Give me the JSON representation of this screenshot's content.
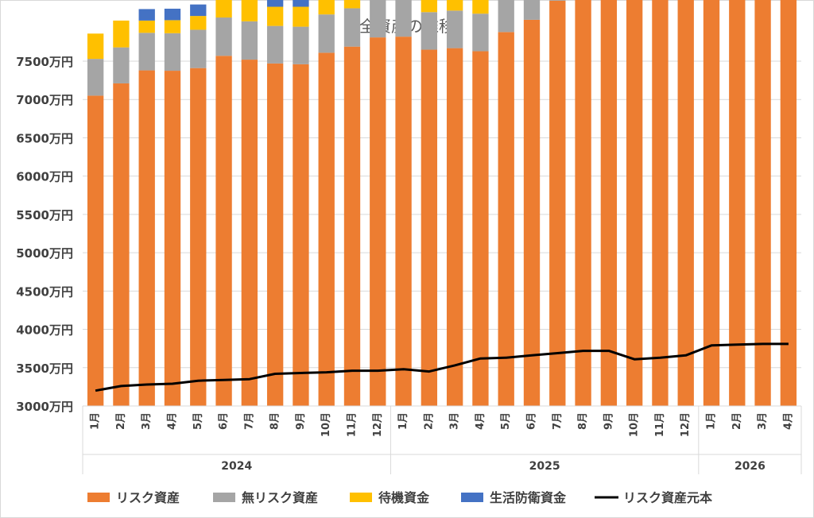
{
  "chart_data": {
    "type": "bar",
    "title": "全資産の推移",
    "xlabel": "",
    "ylabel": "",
    "ylim": [
      3000,
      7500
    ],
    "y_ticks": [
      "3000万円",
      "3500万円",
      "4000万円",
      "4500万円",
      "5000万円",
      "5500万円",
      "6000万円",
      "6500万円",
      "7000万円",
      "7500万円"
    ],
    "grid": true,
    "legend_position": "bottom",
    "categories": [
      "1月",
      "2月",
      "3月",
      "4月",
      "5月",
      "6月",
      "7月",
      "8月",
      "9月",
      "10月",
      "11月",
      "12月",
      "1月",
      "2月",
      "3月",
      "4月",
      "5月",
      "6月",
      "7月",
      "8月",
      "9月",
      "10月",
      "11月",
      "12月",
      "1月",
      "2月",
      "3月",
      "4月"
    ],
    "year_groups": [
      {
        "label": "2024",
        "count": 12
      },
      {
        "label": "2025",
        "count": 12
      },
      {
        "label": "2026",
        "count": 4
      }
    ],
    "series": [
      {
        "name": "リスク資産",
        "kind": "bar",
        "color": "#ED7D31",
        "values": [
          4050,
          4210,
          4380,
          4375,
          4410,
          4570,
          4520,
          4470,
          4460,
          4610,
          4690,
          4810,
          4820,
          4650,
          4670,
          4630,
          4880,
          5040,
          5290,
          5470,
          5540,
          5550,
          5760,
          5860,
          5980,
          6300,
          5900,
          6240
        ]
      },
      {
        "name": "無リスク資産",
        "kind": "bar",
        "color": "#A5A5A5",
        "values": [
          480,
          470,
          490,
          490,
          500,
          500,
          500,
          490,
          490,
          500,
          500,
          490,
          500,
          490,
          490,
          490,
          490,
          490,
          500,
          500,
          490,
          500,
          480,
          500,
          490,
          500,
          490,
          490
        ]
      },
      {
        "name": "待機資金",
        "kind": "bar",
        "color": "#FFC000",
        "values": [
          330,
          350,
          160,
          170,
          180,
          290,
          280,
          250,
          260,
          200,
          180,
          280,
          230,
          350,
          290,
          200,
          180,
          210,
          150,
          180,
          210,
          400,
          390,
          160,
          180,
          190,
          200,
          200
        ]
      },
      {
        "name": "生活防衛資金",
        "kind": "bar",
        "color": "#4472C4",
        "values": [
          0,
          0,
          150,
          150,
          150,
          140,
          140,
          150,
          150,
          140,
          140,
          140,
          150,
          150,
          150,
          150,
          150,
          140,
          150,
          150,
          150,
          150,
          150,
          150,
          150,
          140,
          150,
          140
        ]
      },
      {
        "name": "リスク資産元本",
        "kind": "line",
        "color": "#000000",
        "values": [
          3200,
          3260,
          3280,
          3290,
          3330,
          3340,
          3350,
          3420,
          3430,
          3440,
          3460,
          3460,
          3480,
          3450,
          3530,
          3620,
          3630,
          3660,
          3690,
          3720,
          3720,
          3610,
          3630,
          3660,
          3790,
          3800,
          3810,
          3810
        ]
      }
    ]
  }
}
